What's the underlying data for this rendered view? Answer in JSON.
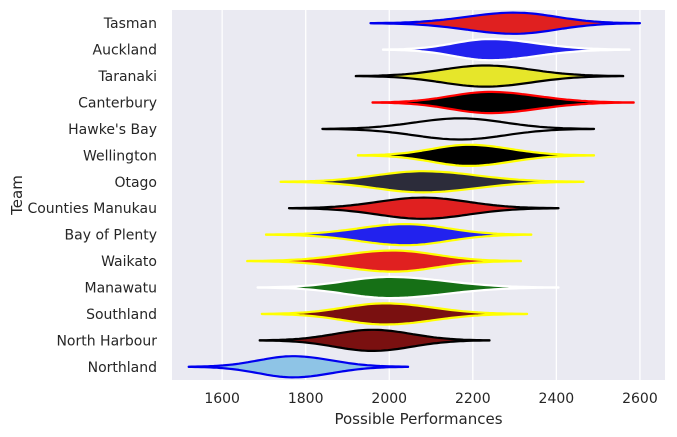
{
  "chart_data": {
    "type": "violin",
    "title": "",
    "xlabel": "Possible Performances",
    "ylabel": "Team",
    "xlim": [
      1480,
      2660
    ],
    "xticks": [
      1600,
      1800,
      2000,
      2200,
      2400,
      2600
    ],
    "grid": true,
    "background": "#eaeaf2",
    "series": [
      {
        "team": "Tasman",
        "min": 1955,
        "max": 2600,
        "median": 2300,
        "spread": 105,
        "fill": "#e02020",
        "stroke": "#0000ee"
      },
      {
        "team": "Auckland",
        "min": 1985,
        "max": 2575,
        "median": 2240,
        "spread": 95,
        "fill": "#2222ee",
        "stroke": "#ffffff"
      },
      {
        "team": "Taranaki",
        "min": 1920,
        "max": 2560,
        "median": 2230,
        "spread": 100,
        "fill": "#e6e62a",
        "stroke": "#000000"
      },
      {
        "team": "Canterbury",
        "min": 1960,
        "max": 2585,
        "median": 2240,
        "spread": 95,
        "fill": "#000000",
        "stroke": "#ff0000"
      },
      {
        "team": "Hawke's Bay",
        "min": 1840,
        "max": 2490,
        "median": 2170,
        "spread": 110,
        "fill": "#eaeaf2",
        "stroke": "#000000"
      },
      {
        "team": "Wellington",
        "min": 1925,
        "max": 2490,
        "median": 2190,
        "spread": 95,
        "fill": "#000000",
        "stroke": "#ffff00"
      },
      {
        "team": "Otago",
        "min": 1740,
        "max": 2465,
        "median": 2080,
        "spread": 105,
        "fill": "#2c2c3a",
        "stroke": "#ffff00"
      },
      {
        "team": "Counties Manukau",
        "min": 1760,
        "max": 2405,
        "median": 2080,
        "spread": 100,
        "fill": "#e02020",
        "stroke": "#000000"
      },
      {
        "team": "Bay of Plenty",
        "min": 1705,
        "max": 2340,
        "median": 2040,
        "spread": 95,
        "fill": "#2222ee",
        "stroke": "#ffff00"
      },
      {
        "team": "Waikato",
        "min": 1660,
        "max": 2315,
        "median": 2010,
        "spread": 100,
        "fill": "#e02020",
        "stroke": "#ffff00"
      },
      {
        "team": "Manawatu",
        "min": 1685,
        "max": 2405,
        "median": 2000,
        "spread": 95,
        "fill": "#167016",
        "stroke": "#ffffff"
      },
      {
        "team": "Southland",
        "min": 1695,
        "max": 2330,
        "median": 1990,
        "spread": 95,
        "fill": "#7a1010",
        "stroke": "#ffff00"
      },
      {
        "team": "North Harbour",
        "min": 1690,
        "max": 2240,
        "median": 1960,
        "spread": 95,
        "fill": "#7a1010",
        "stroke": "#000000"
      },
      {
        "team": "Northland",
        "min": 1520,
        "max": 2045,
        "median": 1770,
        "spread": 90,
        "fill": "#8ec4e6",
        "stroke": "#0000ee"
      }
    ]
  }
}
